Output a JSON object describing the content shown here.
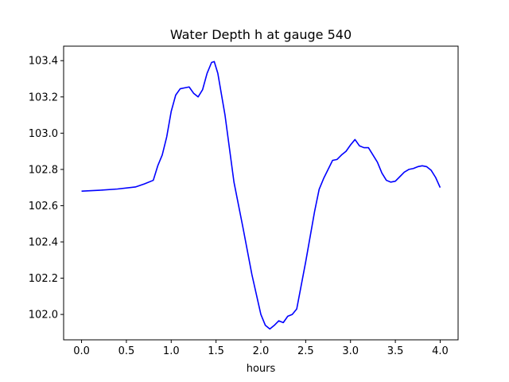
{
  "chart_data": {
    "type": "line",
    "title": "Water Depth h at gauge 540",
    "xlabel": "hours",
    "ylabel": "",
    "xlim": [
      -0.2,
      4.2
    ],
    "ylim": [
      101.86,
      103.48
    ],
    "xticks": [
      0.0,
      0.5,
      1.0,
      1.5,
      2.0,
      2.5,
      3.0,
      3.5,
      4.0
    ],
    "xtick_labels": [
      "0.0",
      "0.5",
      "1.0",
      "1.5",
      "2.0",
      "2.5",
      "3.0",
      "3.5",
      "4.0"
    ],
    "yticks": [
      102.0,
      102.2,
      102.4,
      102.6,
      102.8,
      103.0,
      103.2,
      103.4
    ],
    "ytick_labels": [
      "102.0",
      "102.2",
      "102.4",
      "102.6",
      "102.8",
      "103.0",
      "103.2",
      "103.4"
    ],
    "grid": false,
    "series": [
      {
        "color": "#0000ff",
        "x": [
          0.0,
          0.2,
          0.4,
          0.6,
          0.7,
          0.8,
          0.85,
          0.9,
          0.95,
          1.0,
          1.05,
          1.1,
          1.15,
          1.2,
          1.25,
          1.3,
          1.35,
          1.4,
          1.45,
          1.48,
          1.52,
          1.6,
          1.7,
          1.8,
          1.9,
          2.0,
          2.05,
          2.1,
          2.15,
          2.2,
          2.25,
          2.3,
          2.35,
          2.4,
          2.5,
          2.6,
          2.65,
          2.7,
          2.75,
          2.8,
          2.85,
          2.9,
          2.95,
          3.0,
          3.05,
          3.1,
          3.15,
          3.2,
          3.25,
          3.3,
          3.35,
          3.4,
          3.45,
          3.5,
          3.55,
          3.6,
          3.65,
          3.7,
          3.75,
          3.8,
          3.85,
          3.9,
          3.95,
          4.0
        ],
        "y": [
          102.68,
          102.685,
          102.692,
          102.703,
          102.72,
          102.74,
          102.82,
          102.88,
          102.98,
          103.12,
          103.21,
          103.245,
          103.25,
          103.255,
          103.22,
          103.2,
          103.24,
          103.33,
          103.39,
          103.395,
          103.33,
          103.1,
          102.73,
          102.48,
          102.22,
          102.0,
          101.94,
          101.92,
          101.94,
          101.965,
          101.955,
          101.99,
          102.0,
          102.03,
          102.29,
          102.57,
          102.69,
          102.75,
          102.8,
          102.85,
          102.855,
          102.88,
          102.9,
          102.935,
          102.965,
          102.93,
          102.92,
          102.92,
          102.88,
          102.84,
          102.78,
          102.74,
          102.73,
          102.735,
          102.76,
          102.785,
          102.8,
          102.805,
          102.815,
          102.82,
          102.815,
          102.795,
          102.755,
          102.7
        ]
      }
    ]
  }
}
